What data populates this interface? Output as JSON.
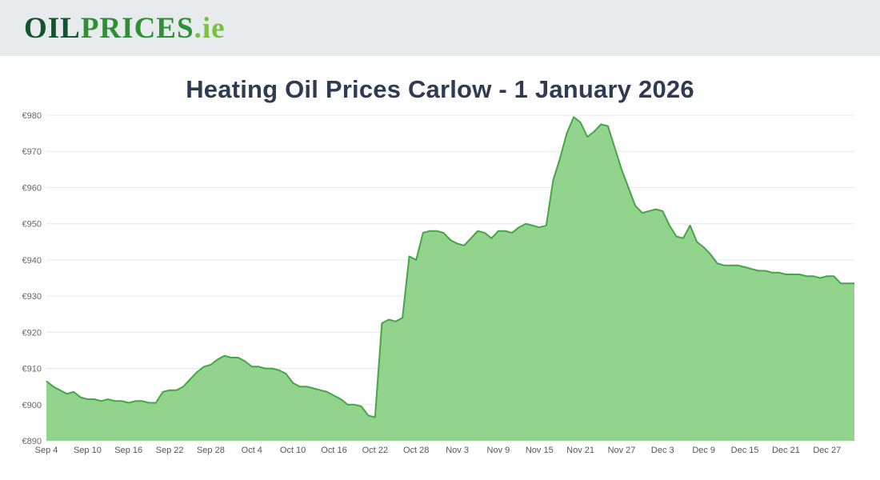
{
  "logo": {
    "part1": "OIL",
    "part2": "PRICES",
    "part3": ".ie"
  },
  "title": "Heating Oil Prices Carlow - 1 January 2026",
  "colors": {
    "header_bg": "#e8ebee",
    "title_text": "#2e3b52",
    "area_fill": "#92d38e",
    "line_stroke": "#46a546",
    "grid_line": "#e6e6e6",
    "y_label": "#666666",
    "x_label": "#555555"
  },
  "chart_data": {
    "type": "area",
    "title": "Heating Oil Prices Carlow - 1 January 2026",
    "xlabel": "",
    "ylabel": "",
    "currency_prefix": "€",
    "ylim": [
      890,
      980
    ],
    "y_ticks": [
      890,
      900,
      910,
      920,
      930,
      940,
      950,
      960,
      970,
      980
    ],
    "grid": true,
    "legend": "none",
    "x_tick_interval_days": 6,
    "x_tick_labels": [
      "Sep 4",
      "Sep 10",
      "Sep 16",
      "Sep 22",
      "Sep 28",
      "Oct 4",
      "Oct 10",
      "Oct 16",
      "Oct 22",
      "Oct 28",
      "Nov 3",
      "Nov 9",
      "Nov 15",
      "Nov 21",
      "Nov 27",
      "Dec 3",
      "Dec 9",
      "Dec 15",
      "Dec 21",
      "Dec 27"
    ],
    "x_start_date": "Sep 4",
    "x_end_date": "Dec 31",
    "values": [
      906.5,
      905,
      904,
      903,
      903.5,
      902,
      901.5,
      901.5,
      901,
      901.5,
      901,
      901,
      900.5,
      901,
      901,
      900.5,
      900.5,
      903.5,
      904,
      904,
      905,
      907,
      909,
      910.5,
      911,
      912.5,
      913.5,
      913,
      913,
      912,
      910.5,
      910.5,
      910,
      910,
      909.5,
      908.5,
      906,
      905,
      905,
      904.5,
      904,
      903.5,
      902.5,
      901.5,
      900,
      900,
      899.5,
      897,
      896.5,
      922.5,
      923.5,
      923,
      924,
      941,
      940,
      947.5,
      948,
      948,
      947.5,
      945.5,
      944.5,
      944,
      946,
      948,
      947.5,
      946,
      948,
      948,
      947.5,
      949,
      950,
      949.5,
      949,
      949.5,
      962,
      968,
      975,
      979.5,
      978,
      974,
      975.5,
      977.5,
      977,
      971,
      965,
      960,
      955,
      953,
      953.5,
      954,
      953.5,
      949.5,
      946.5,
      946,
      949.5,
      945,
      943.5,
      941.5,
      939,
      938.5,
      938.5,
      938.5,
      938,
      937.5,
      937,
      937,
      936.5,
      936.5,
      936,
      936,
      936,
      935.5,
      935.5,
      935,
      935.5,
      935.5,
      933.5,
      933.5,
      933.5
    ]
  }
}
